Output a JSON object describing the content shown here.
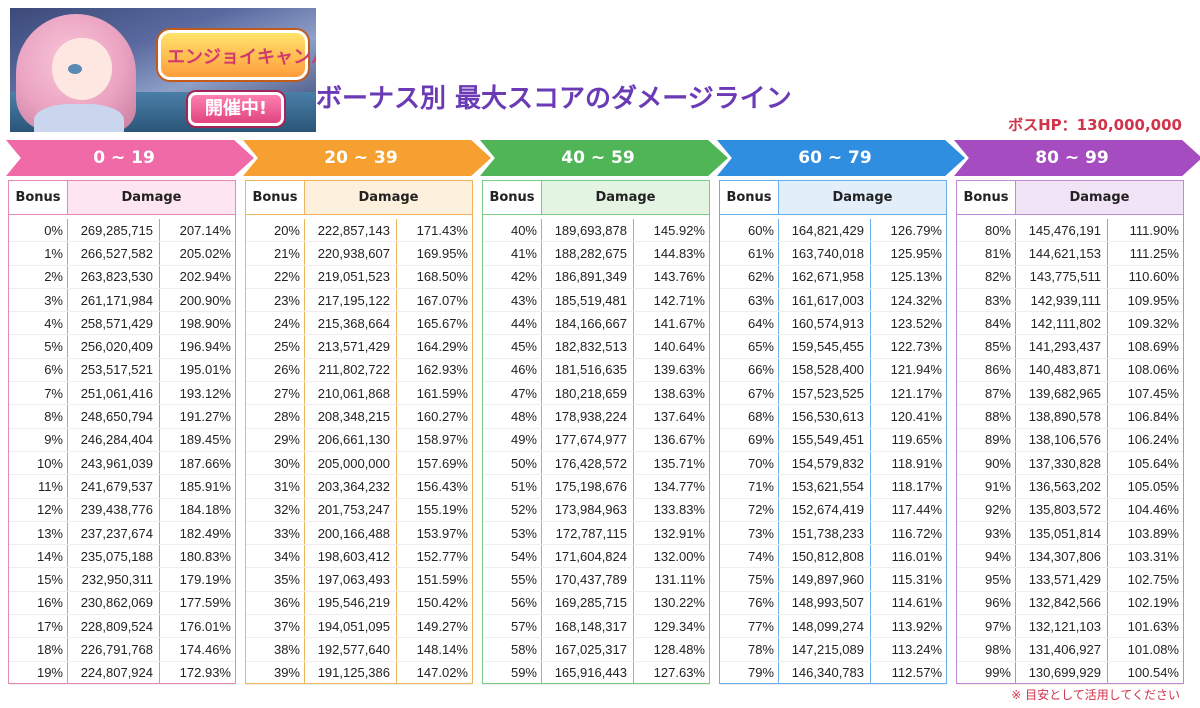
{
  "banner": {
    "logo_text": "エンジョイキャンパー",
    "badge_text": "開催中!"
  },
  "page_title": "ボーナス別 最大スコアのダメージライン",
  "boss_hp": "ボスHP：130,000,000",
  "footnote": "※ 目安として活用してください",
  "columns": {
    "bonus": "Bonus",
    "damage": "Damage"
  },
  "groups": [
    {
      "range": "0 ~ 19",
      "color": "#f06aa8",
      "head_bg": "#fde6ef",
      "border": "#e58ab5",
      "rows": [
        [
          "0%",
          "269,285,715",
          "207.14%"
        ],
        [
          "1%",
          "266,527,582",
          "205.02%"
        ],
        [
          "2%",
          "263,823,530",
          "202.94%"
        ],
        [
          "3%",
          "261,171,984",
          "200.90%"
        ],
        [
          "4%",
          "258,571,429",
          "198.90%"
        ],
        [
          "5%",
          "256,020,409",
          "196.94%"
        ],
        [
          "6%",
          "253,517,521",
          "195.01%"
        ],
        [
          "7%",
          "251,061,416",
          "193.12%"
        ],
        [
          "8%",
          "248,650,794",
          "191.27%"
        ],
        [
          "9%",
          "246,284,404",
          "189.45%"
        ],
        [
          "10%",
          "243,961,039",
          "187.66%"
        ],
        [
          "11%",
          "241,679,537",
          "185.91%"
        ],
        [
          "12%",
          "239,438,776",
          "184.18%"
        ],
        [
          "13%",
          "237,237,674",
          "182.49%"
        ],
        [
          "14%",
          "235,075,188",
          "180.83%"
        ],
        [
          "15%",
          "232,950,311",
          "179.19%"
        ],
        [
          "16%",
          "230,862,069",
          "177.59%"
        ],
        [
          "17%",
          "228,809,524",
          "176.01%"
        ],
        [
          "18%",
          "226,791,768",
          "174.46%"
        ],
        [
          "19%",
          "224,807,924",
          "172.93%"
        ]
      ]
    },
    {
      "range": "20 ~ 39",
      "color": "#f5a031",
      "head_bg": "#fdf0dc",
      "border": "#f0b45c",
      "rows": [
        [
          "20%",
          "222,857,143",
          "171.43%"
        ],
        [
          "21%",
          "220,938,607",
          "169.95%"
        ],
        [
          "22%",
          "219,051,523",
          "168.50%"
        ],
        [
          "23%",
          "217,195,122",
          "167.07%"
        ],
        [
          "24%",
          "215,368,664",
          "165.67%"
        ],
        [
          "25%",
          "213,571,429",
          "164.29%"
        ],
        [
          "26%",
          "211,802,722",
          "162.93%"
        ],
        [
          "27%",
          "210,061,868",
          "161.59%"
        ],
        [
          "28%",
          "208,348,215",
          "160.27%"
        ],
        [
          "29%",
          "206,661,130",
          "158.97%"
        ],
        [
          "30%",
          "205,000,000",
          "157.69%"
        ],
        [
          "31%",
          "203,364,232",
          "156.43%"
        ],
        [
          "32%",
          "201,753,247",
          "155.19%"
        ],
        [
          "33%",
          "200,166,488",
          "153.97%"
        ],
        [
          "34%",
          "198,603,412",
          "152.77%"
        ],
        [
          "35%",
          "197,063,493",
          "151.59%"
        ],
        [
          "36%",
          "195,546,219",
          "150.42%"
        ],
        [
          "37%",
          "194,051,095",
          "149.27%"
        ],
        [
          "38%",
          "192,577,640",
          "148.14%"
        ],
        [
          "39%",
          "191,125,386",
          "147.02%"
        ]
      ]
    },
    {
      "range": "40 ~ 59",
      "color": "#4fb557",
      "head_bg": "#e3f4e3",
      "border": "#7ccb82",
      "rows": [
        [
          "40%",
          "189,693,878",
          "145.92%"
        ],
        [
          "41%",
          "188,282,675",
          "144.83%"
        ],
        [
          "42%",
          "186,891,349",
          "143.76%"
        ],
        [
          "43%",
          "185,519,481",
          "142.71%"
        ],
        [
          "44%",
          "184,166,667",
          "141.67%"
        ],
        [
          "45%",
          "182,832,513",
          "140.64%"
        ],
        [
          "46%",
          "181,516,635",
          "139.63%"
        ],
        [
          "47%",
          "180,218,659",
          "138.63%"
        ],
        [
          "48%",
          "178,938,224",
          "137.64%"
        ],
        [
          "49%",
          "177,674,977",
          "136.67%"
        ],
        [
          "50%",
          "176,428,572",
          "135.71%"
        ],
        [
          "51%",
          "175,198,676",
          "134.77%"
        ],
        [
          "52%",
          "173,984,963",
          "133.83%"
        ],
        [
          "53%",
          "172,787,115",
          "132.91%"
        ],
        [
          "54%",
          "171,604,824",
          "132.00%"
        ],
        [
          "55%",
          "170,437,789",
          "131.11%"
        ],
        [
          "56%",
          "169,285,715",
          "130.22%"
        ],
        [
          "57%",
          "168,148,317",
          "129.34%"
        ],
        [
          "58%",
          "167,025,317",
          "128.48%"
        ],
        [
          "59%",
          "165,916,443",
          "127.63%"
        ]
      ]
    },
    {
      "range": "60 ~ 79",
      "color": "#2f8ee0",
      "head_bg": "#e2effb",
      "border": "#6aaeea",
      "rows": [
        [
          "60%",
          "164,821,429",
          "126.79%"
        ],
        [
          "61%",
          "163,740,018",
          "125.95%"
        ],
        [
          "62%",
          "162,671,958",
          "125.13%"
        ],
        [
          "63%",
          "161,617,003",
          "124.32%"
        ],
        [
          "64%",
          "160,574,913",
          "123.52%"
        ],
        [
          "65%",
          "159,545,455",
          "122.73%"
        ],
        [
          "66%",
          "158,528,400",
          "121.94%"
        ],
        [
          "67%",
          "157,523,525",
          "121.17%"
        ],
        [
          "68%",
          "156,530,613",
          "120.41%"
        ],
        [
          "69%",
          "155,549,451",
          "119.65%"
        ],
        [
          "70%",
          "154,579,832",
          "118.91%"
        ],
        [
          "71%",
          "153,621,554",
          "118.17%"
        ],
        [
          "72%",
          "152,674,419",
          "117.44%"
        ],
        [
          "73%",
          "151,738,233",
          "116.72%"
        ],
        [
          "74%",
          "150,812,808",
          "116.01%"
        ],
        [
          "75%",
          "149,897,960",
          "115.31%"
        ],
        [
          "76%",
          "148,993,507",
          "114.61%"
        ],
        [
          "77%",
          "148,099,274",
          "113.92%"
        ],
        [
          "78%",
          "147,215,089",
          "113.24%"
        ],
        [
          "79%",
          "146,340,783",
          "112.57%"
        ]
      ]
    },
    {
      "range": "80 ~ 99",
      "color": "#a44cc0",
      "head_bg": "#f2e4f7",
      "border": "#c08ad3",
      "rows": [
        [
          "80%",
          "145,476,191",
          "111.90%"
        ],
        [
          "81%",
          "144,621,153",
          "111.25%"
        ],
        [
          "82%",
          "143,775,511",
          "110.60%"
        ],
        [
          "83%",
          "142,939,111",
          "109.95%"
        ],
        [
          "84%",
          "142,111,802",
          "109.32%"
        ],
        [
          "85%",
          "141,293,437",
          "108.69%"
        ],
        [
          "86%",
          "140,483,871",
          "108.06%"
        ],
        [
          "87%",
          "139,682,965",
          "107.45%"
        ],
        [
          "88%",
          "138,890,578",
          "106.84%"
        ],
        [
          "89%",
          "138,106,576",
          "106.24%"
        ],
        [
          "90%",
          "137,330,828",
          "105.64%"
        ],
        [
          "91%",
          "136,563,202",
          "105.05%"
        ],
        [
          "92%",
          "135,803,572",
          "104.46%"
        ],
        [
          "93%",
          "135,051,814",
          "103.89%"
        ],
        [
          "94%",
          "134,307,806",
          "103.31%"
        ],
        [
          "95%",
          "133,571,429",
          "102.75%"
        ],
        [
          "96%",
          "132,842,566",
          "102.19%"
        ],
        [
          "97%",
          "132,121,103",
          "101.63%"
        ],
        [
          "98%",
          "131,406,927",
          "101.08%"
        ],
        [
          "99%",
          "130,699,929",
          "100.54%"
        ]
      ]
    }
  ]
}
